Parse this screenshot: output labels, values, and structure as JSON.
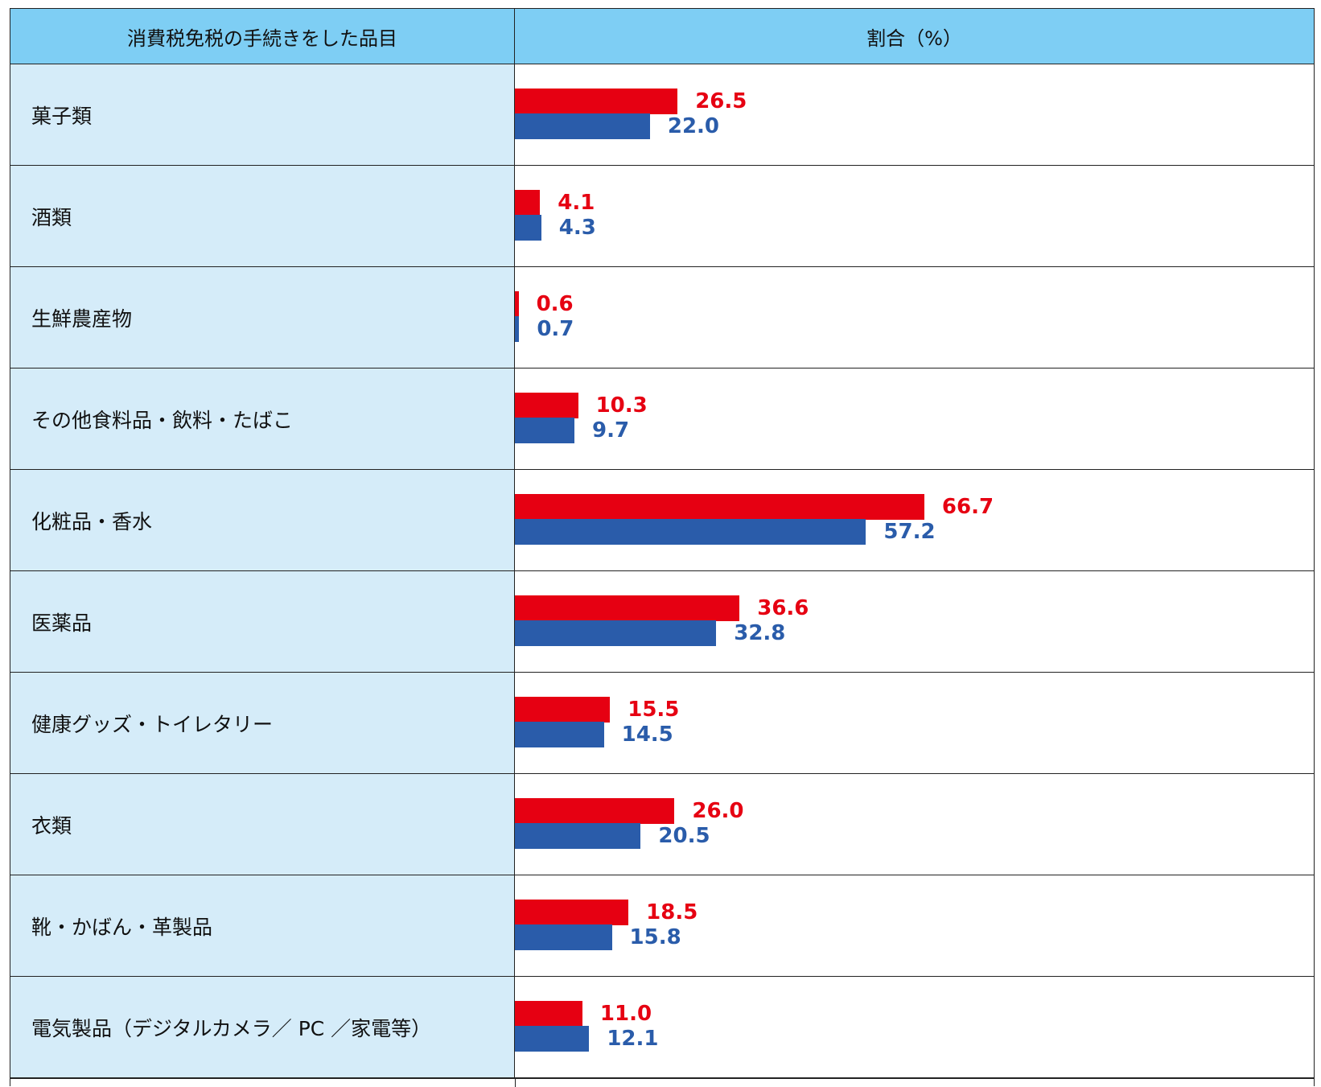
{
  "table": {
    "header_item": "消費税免税の手続きをした品目",
    "header_ratio": "割合（%）"
  },
  "colors": {
    "series_a": "#e60012",
    "series_b": "#2a5caa",
    "header_bg": "#7ecef4",
    "label_bg": "#d5ecf9"
  },
  "chart_data": {
    "type": "bar",
    "orientation": "horizontal",
    "categories": [
      "菓子類",
      "酒類",
      "生鮮農産物",
      "その他食料品・飲料・たばこ",
      "化粧品・香水",
      "医薬品",
      "健康グッズ・トイレタリー",
      "衣類",
      "靴・かばん・革製品",
      "電気製品（デジタルカメラ／ PC ／家電等）"
    ],
    "series": [
      {
        "color": "#e60012",
        "values": [
          26.5,
          4.1,
          0.6,
          10.3,
          66.7,
          36.6,
          15.5,
          26.0,
          18.5,
          11.0
        ]
      },
      {
        "color": "#2a5caa",
        "values": [
          22.0,
          4.3,
          0.7,
          9.7,
          57.2,
          32.8,
          14.5,
          20.5,
          15.8,
          12.1
        ]
      }
    ],
    "value_labels": [
      [
        "26.5",
        "4.1",
        "0.6",
        "10.3",
        "66.7",
        "36.6",
        "15.5",
        "26.0",
        "18.5",
        "11.0"
      ],
      [
        "22.0",
        "4.3",
        "0.7",
        "9.7",
        "57.2",
        "32.8",
        "14.5",
        "20.5",
        "15.8",
        "12.1"
      ]
    ],
    "xlim": [
      0,
      100
    ],
    "grid": false,
    "legend": "none"
  }
}
